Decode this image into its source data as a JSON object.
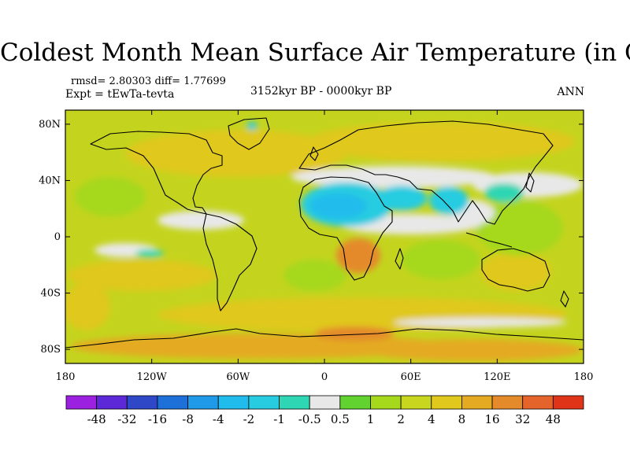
{
  "title": "Coldest Month Mean Surface Air Temperature (in C)",
  "stats": "rmsd= 2.80303 diff= 1.77699",
  "experiment": "Expt = tEwTa-tevta",
  "period": "3152kyr BP - 0000kyr BP",
  "season": "ANN",
  "map": {
    "lon_range": [
      -180,
      180
    ],
    "lat_range": [
      -90,
      90
    ],
    "lat_ticks": [
      {
        "value": 80,
        "label": "80N"
      },
      {
        "value": 40,
        "label": "40N"
      },
      {
        "value": 0,
        "label": "0"
      },
      {
        "value": -40,
        "label": "40S"
      },
      {
        "value": -80,
        "label": "80S"
      }
    ],
    "lon_ticks": [
      {
        "value": -180,
        "label": "180"
      },
      {
        "value": -120,
        "label": "120W"
      },
      {
        "value": -60,
        "label": "60W"
      },
      {
        "value": 0,
        "label": "0"
      },
      {
        "value": 60,
        "label": "60E"
      },
      {
        "value": 120,
        "label": "120E"
      },
      {
        "value": 180,
        "label": "180"
      }
    ]
  },
  "colorbar": {
    "colors": [
      "#9c20e0",
      "#5c28d8",
      "#2e48c8",
      "#1c70d8",
      "#1e9ae8",
      "#20bcec",
      "#28cce0",
      "#2ed6b4",
      "#e8e8e8",
      "#62d230",
      "#a6d81c",
      "#c8d61e",
      "#e0c81c",
      "#e4aa22",
      "#e48a2a",
      "#e4642c",
      "#e03418"
    ],
    "labels": [
      "-48",
      "-32",
      "-16",
      "-8",
      "-4",
      "-2",
      "-1",
      "-0.5",
      "0.5",
      "1",
      "2",
      "4",
      "8",
      "16",
      "32",
      "48"
    ]
  }
}
